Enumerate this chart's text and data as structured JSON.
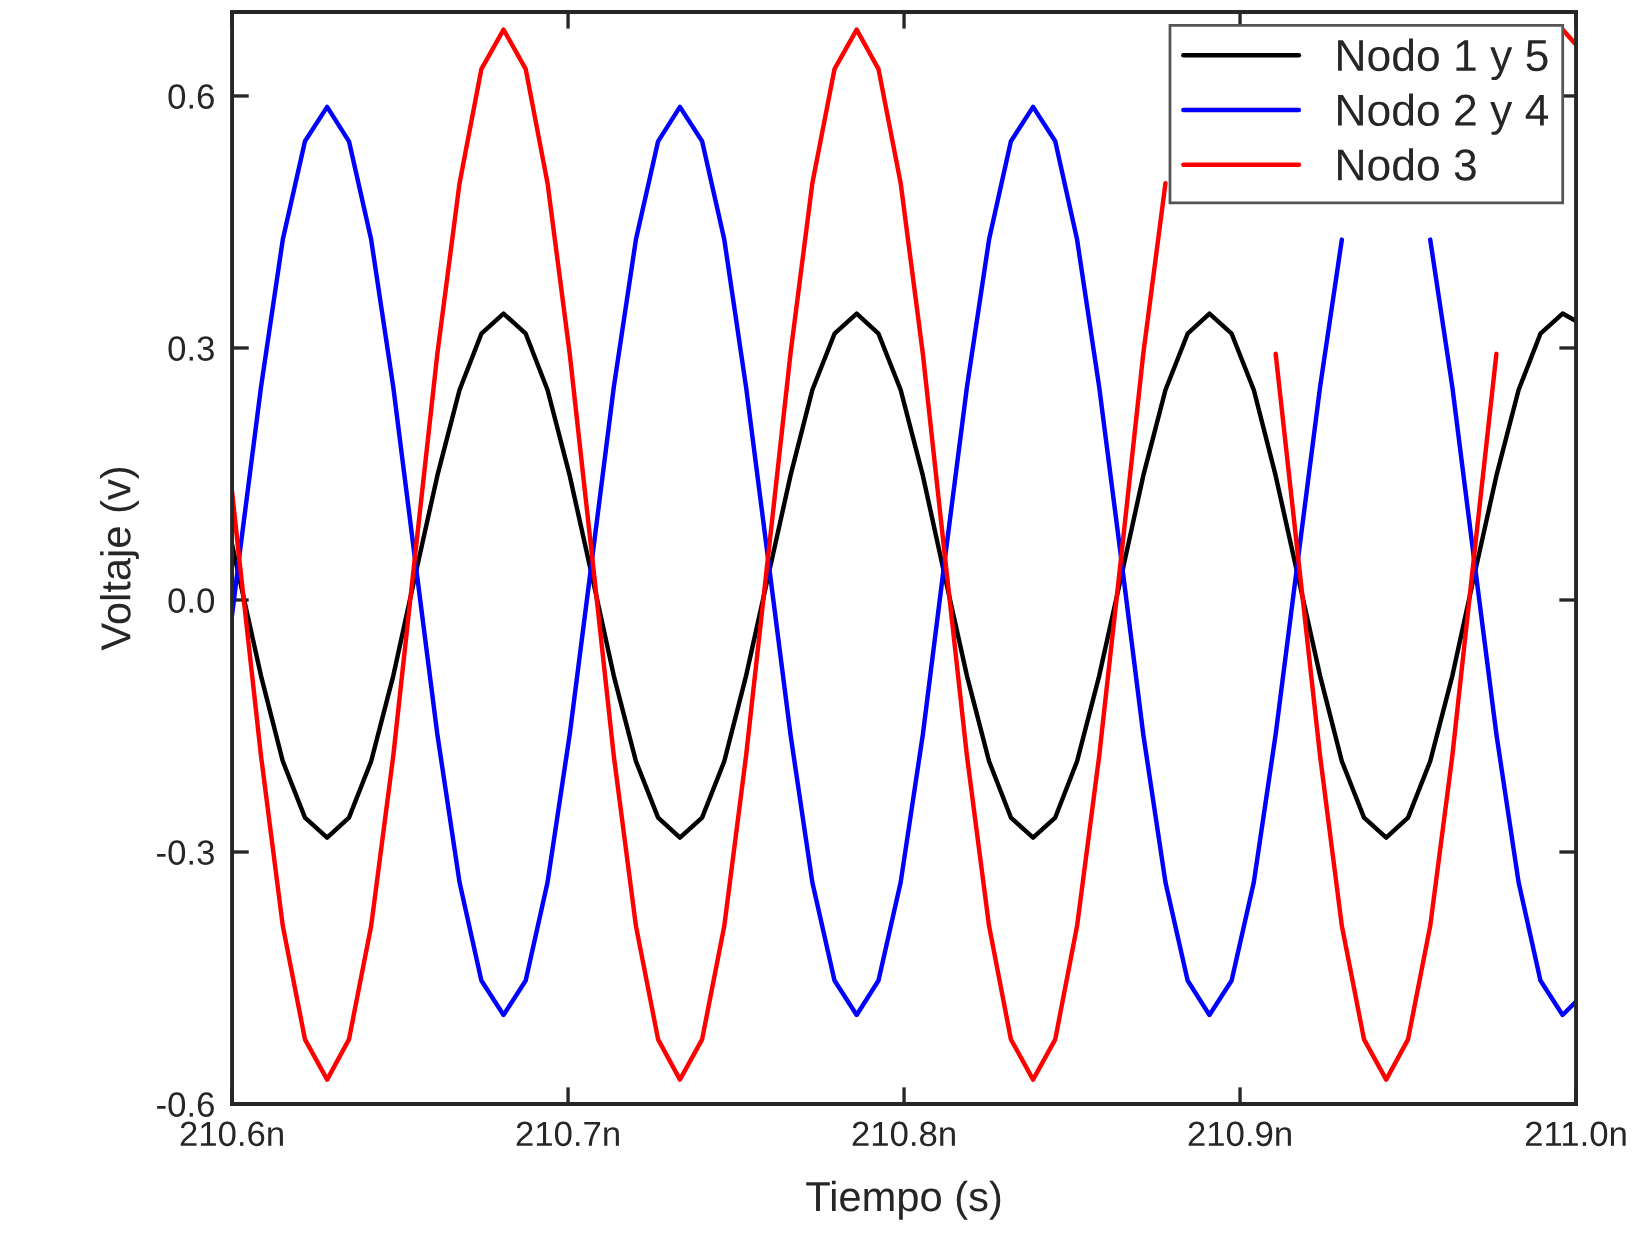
{
  "chart_data": {
    "type": "line",
    "xlabel": "Tiempo (s)",
    "ylabel": "Voltaje (v)",
    "x": [
      210.6,
      210.602,
      210.6086,
      210.6151,
      210.6217,
      210.6283,
      210.6348,
      210.6414,
      210.648,
      210.6545,
      210.6611,
      210.6677,
      210.6742,
      210.6808,
      210.6874,
      210.6939,
      210.7005,
      210.7071,
      210.7136,
      210.7202,
      210.7268,
      210.7333,
      210.7399,
      210.7465,
      210.753,
      210.7596,
      210.7662,
      210.7727,
      210.7793,
      210.7859,
      210.7924,
      210.799,
      210.8056,
      210.8121,
      210.8187,
      210.8253,
      210.8318,
      210.8384,
      210.845,
      210.8515,
      210.8581,
      210.8647,
      210.8712,
      210.8778,
      210.8844,
      210.8909,
      210.8975,
      210.9041,
      210.9106,
      210.9172,
      210.9238,
      210.9303,
      210.9369,
      210.9435,
      210.95,
      210.9566,
      210.9632,
      210.9697,
      210.9763,
      210.9829,
      210.9894,
      210.996,
      211.0
    ],
    "series": [
      {
        "name": "Nodo 1 y 5",
        "color": "#000000",
        "values": [
          0.066,
          0.029,
          -0.09,
          -0.192,
          -0.259,
          -0.283,
          -0.259,
          -0.192,
          -0.09,
          0.029,
          0.148,
          0.25,
          0.317,
          0.341,
          0.317,
          0.25,
          0.148,
          0.029,
          -0.09,
          -0.192,
          -0.259,
          -0.283,
          -0.259,
          -0.192,
          -0.09,
          0.029,
          0.148,
          0.25,
          0.317,
          0.341,
          0.317,
          0.25,
          0.148,
          0.029,
          -0.09,
          -0.192,
          -0.259,
          -0.283,
          -0.259,
          -0.192,
          -0.09,
          0.029,
          0.148,
          0.25,
          0.317,
          0.341,
          0.317,
          0.25,
          0.148,
          0.029,
          -0.09,
          -0.192,
          -0.259,
          -0.283,
          -0.259,
          -0.192,
          -0.09,
          0.029,
          0.148,
          0.25,
          0.317,
          0.341,
          0.332
        ]
      },
      {
        "name": "Nodo 2 y 4",
        "color": "#0000ff",
        "values": [
          -0.018,
          0.047,
          0.253,
          0.429,
          0.546,
          0.587,
          0.546,
          0.429,
          0.253,
          0.047,
          -0.16,
          -0.336,
          -0.453,
          -0.494,
          -0.453,
          -0.336,
          -0.16,
          0.047,
          0.253,
          0.429,
          0.546,
          0.587,
          0.546,
          0.429,
          0.253,
          0.047,
          -0.16,
          -0.336,
          -0.453,
          -0.494,
          -0.453,
          -0.336,
          -0.16,
          0.047,
          0.253,
          0.429,
          0.546,
          0.587,
          0.546,
          0.429,
          0.253,
          0.047,
          -0.16,
          -0.336,
          -0.453,
          -0.494,
          -0.453,
          -0.336,
          -0.16,
          0.047,
          0.253,
          0.429,
          null,
          null,
          null,
          0.429,
          0.253,
          0.047,
          -0.16,
          -0.336,
          -0.453,
          -0.494,
          -0.478
        ]
      },
      {
        "name": "Nodo 3",
        "color": "#ff0000",
        "values": [
          0.129,
          0.054,
          -0.185,
          -0.388,
          -0.523,
          -0.571,
          -0.523,
          -0.388,
          -0.185,
          0.054,
          0.293,
          0.496,
          0.632,
          0.679,
          0.632,
          0.496,
          0.293,
          0.054,
          -0.185,
          -0.388,
          -0.523,
          -0.571,
          -0.523,
          -0.388,
          -0.185,
          0.054,
          0.293,
          0.496,
          0.632,
          0.679,
          0.632,
          0.496,
          0.293,
          0.054,
          -0.185,
          -0.388,
          -0.523,
          -0.571,
          -0.523,
          -0.388,
          -0.185,
          0.054,
          0.293,
          0.496,
          null,
          null,
          null,
          null,
          0.293,
          0.054,
          -0.185,
          -0.388,
          -0.523,
          -0.571,
          -0.523,
          -0.388,
          -0.185,
          0.054,
          0.293,
          null,
          null,
          0.679,
          0.661
        ]
      }
    ],
    "xlim": [
      210.6,
      211.0
    ],
    "xticks": [
      {
        "value": 210.6,
        "label": "210.6n"
      },
      {
        "value": 210.7,
        "label": "210.7n"
      },
      {
        "value": 210.8,
        "label": "210.8n"
      },
      {
        "value": 210.9,
        "label": "210.9n"
      },
      {
        "value": 211.0,
        "label": "211.0n"
      }
    ],
    "ylim": [
      -0.6,
      0.7
    ],
    "yticks": [
      -0.6,
      -0.3,
      {
        "value": 0,
        "label": "0.0"
      },
      0.3,
      0.6
    ],
    "legend": "top right",
    "grid": false,
    "marker": "none",
    "line_style": "solid"
  }
}
